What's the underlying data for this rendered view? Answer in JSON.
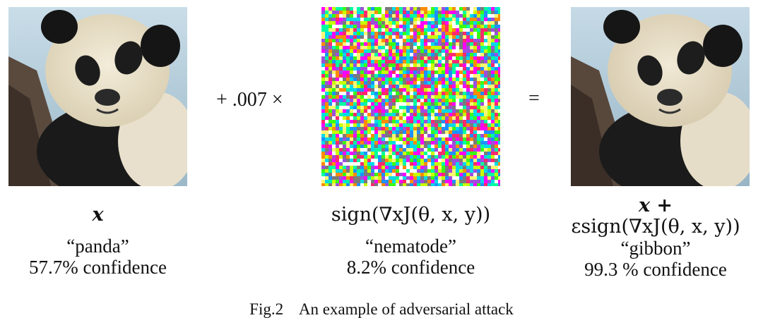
{
  "operators": {
    "plus_times": "+ .007 ×",
    "equals": "="
  },
  "panels": [
    {
      "image": "panda-photo",
      "expression": "x",
      "label": "“panda”",
      "confidence": "57.7% confidence"
    },
    {
      "image": "noise-perturbation",
      "expression": "sign(∇xJ(θ, x, y))",
      "label": "“nematode”",
      "confidence": "8.2% confidence"
    },
    {
      "image": "panda-photo-perturbed",
      "expression_line1": "x +",
      "expression_line2": "εsign(∇xJ(θ, x, y))",
      "label": "“gibbon”",
      "confidence": "99.3 % confidence"
    }
  ],
  "figure_caption": "Fig.2    An example of adversarial attack"
}
